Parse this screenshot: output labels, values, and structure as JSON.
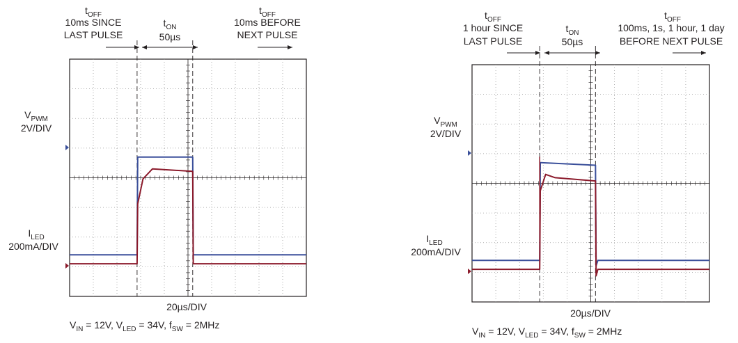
{
  "chart_data": [
    {
      "type": "line",
      "xlabel": "20µs/DIV",
      "conditions": {
        "vin": "12V",
        "vled": "34V",
        "fsw": "2MHz"
      },
      "annotations": [
        {
          "label_main": "t",
          "label_sub": "OFF",
          "lines": [
            "10ms SINCE",
            "LAST PULSE"
          ],
          "arrow": "right"
        },
        {
          "label_main": "t",
          "label_sub": "ON",
          "lines": [
            "50µs"
          ],
          "arrow": "both"
        },
        {
          "label_main": "t",
          "label_sub": "OFF",
          "lines": [
            "10ms BEFORE",
            "NEXT PULSE"
          ],
          "arrow": "right"
        }
      ],
      "x_divisions": 10,
      "y_divisions": 8,
      "x_units": "µs",
      "x_range": [
        0,
        200
      ],
      "pulse": {
        "start_us": 57,
        "end_us": 104
      },
      "series": [
        {
          "name_main": "V",
          "name_sub": "PWM",
          "scale": "2V/DIV",
          "color": "#3a4f9a",
          "baseline_div": 1.4,
          "top_div": 3.3,
          "overshoot_div": 0,
          "points": [
            [
              0,
              0
            ],
            [
              57,
              0
            ],
            [
              57.5,
              4.0
            ],
            [
              104,
              4.0
            ],
            [
              104.5,
              0
            ],
            [
              200,
              0
            ]
          ]
        },
        {
          "name_main": "I",
          "name_sub": "LED",
          "scale": "200mA/DIV",
          "color": "#8b1a2b",
          "baseline_div": 1.1,
          "top_div": 3.2,
          "overshoot_div": 0,
          "points": [
            [
              0,
              0
            ],
            [
              57,
              0
            ],
            [
              57.5,
              240
            ],
            [
              62,
              340
            ],
            [
              70,
              380
            ],
            [
              104,
              370
            ],
            [
              104.5,
              0
            ],
            [
              200,
              0
            ]
          ]
        }
      ]
    },
    {
      "type": "line",
      "xlabel": "20µs/DIV",
      "conditions": {
        "vin": "12V",
        "vled": "34V",
        "fsw": "2MHz"
      },
      "annotations": [
        {
          "label_main": "t",
          "label_sub": "OFF",
          "lines": [
            "1 hour SINCE",
            "LAST PULSE"
          ],
          "arrow": "right"
        },
        {
          "label_main": "t",
          "label_sub": "ON",
          "lines": [
            "50µs"
          ],
          "arrow": "both"
        },
        {
          "label_main": "t",
          "label_sub": "OFF",
          "lines": [
            "100ms, 1s, 1 hour, 1 day",
            "BEFORE NEXT PULSE"
          ],
          "arrow": "right"
        }
      ],
      "x_divisions": 10,
      "y_divisions": 8,
      "x_units": "µs",
      "x_range": [
        0,
        200
      ],
      "pulse": {
        "start_us": 57,
        "end_us": 104
      },
      "series": [
        {
          "name_main": "V",
          "name_sub": "PWM",
          "scale": "2V/DIV",
          "color": "#3a4f9a",
          "baseline_div": 1.4,
          "top_div": 3.3,
          "overshoot_div": 0,
          "points": [
            [
              0,
              0
            ],
            [
              57,
              0
            ],
            [
              57.5,
              3.7
            ],
            [
              104,
              3.6
            ],
            [
              104.5,
              -0.2
            ],
            [
              106,
              0
            ],
            [
              200,
              0
            ]
          ]
        },
        {
          "name_main": "I",
          "name_sub": "LED",
          "scale": "200mA/DIV",
          "color": "#8b1a2b",
          "baseline_div": 1.1,
          "top_div": 3.2,
          "overshoot_div": 1.2,
          "points": [
            [
              0,
              0
            ],
            [
              57,
              0
            ],
            [
              57.5,
              240
            ],
            [
              62,
              290
            ],
            [
              70,
              280
            ],
            [
              104,
              270
            ],
            [
              104.5,
              -20
            ],
            [
              106,
              0
            ],
            [
              200,
              0
            ]
          ]
        }
      ]
    }
  ]
}
